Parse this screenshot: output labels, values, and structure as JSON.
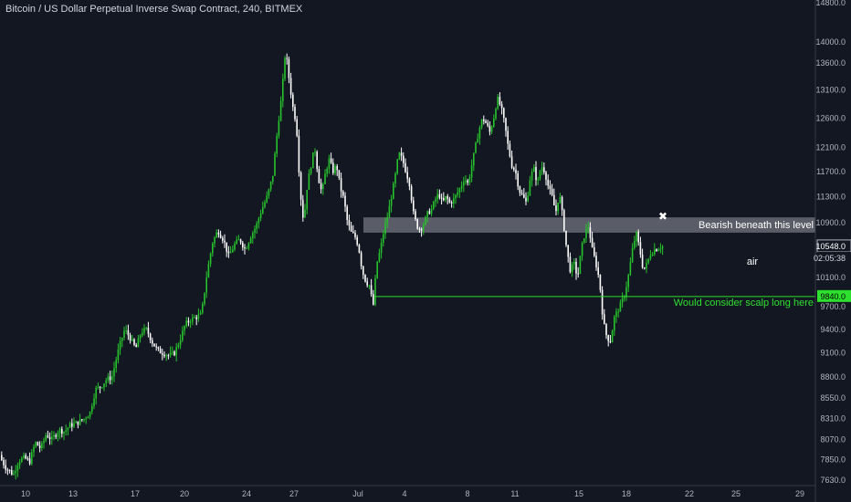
{
  "header": {
    "title": "Bitcoin / US Dollar Perpetual Inverse Swap Contract, 240, BITMEX"
  },
  "colors": {
    "background": "#131722",
    "up": "#26c22b",
    "down": "#ffffff",
    "axis_text": "#b2b5be",
    "support_line": "#2ee02e",
    "resistance_zone": "#9598a1"
  },
  "price_scale": {
    "ticks": [
      "14800.0",
      "14000.0",
      "13600.0",
      "13100.0",
      "12600.0",
      "12100.0",
      "11700.0",
      "11300.0",
      "10900.0",
      "10100.0",
      "9700.0",
      "9400.0",
      "9100.0",
      "8800.0",
      "8550.0",
      "8310.0",
      "8070.0",
      "7850.0",
      "7630.0"
    ],
    "current_price": "10548.0",
    "countdown": "02:05:38",
    "support_price": "9840.0"
  },
  "time_scale": {
    "ticks": [
      "10",
      "13",
      "17",
      "20",
      "24",
      "27",
      "Jul",
      "4",
      "8",
      "11",
      "15",
      "18",
      "22",
      "25",
      "29"
    ]
  },
  "annotations": {
    "resistance_text": "Bearish beneath this level",
    "air_text": "air",
    "support_text": "Would consider scalp long here",
    "marker": "✖"
  },
  "chart_data": {
    "type": "candlestick",
    "title": "Bitcoin / US Dollar Perpetual Inverse Swap Contract, 240, BITMEX",
    "y_scale": "log",
    "ylim": [
      7580,
      15000
    ],
    "x_ticks": [
      "10",
      "13",
      "17",
      "20",
      "24",
      "27",
      "Jul",
      "4",
      "8",
      "11",
      "15",
      "18",
      "22",
      "25",
      "29"
    ],
    "resistance_zone": [
      10750,
      10980
    ],
    "support_level": 9840,
    "last_price": 10548,
    "price_path": [
      [
        0,
        7900
      ],
      [
        8,
        7760
      ],
      [
        16,
        7690
      ],
      [
        22,
        7840
      ],
      [
        28,
        7870
      ],
      [
        34,
        7830
      ],
      [
        40,
        8040
      ],
      [
        46,
        7970
      ],
      [
        52,
        8130
      ],
      [
        58,
        8070
      ],
      [
        66,
        8180
      ],
      [
        72,
        8160
      ],
      [
        78,
        8230
      ],
      [
        86,
        8260
      ],
      [
        94,
        8310
      ],
      [
        100,
        8380
      ],
      [
        106,
        8650
      ],
      [
        112,
        8690
      ],
      [
        118,
        8770
      ],
      [
        124,
        8800
      ],
      [
        132,
        9180
      ],
      [
        138,
        9400
      ],
      [
        144,
        9290
      ],
      [
        150,
        9150
      ],
      [
        156,
        9370
      ],
      [
        162,
        9400
      ],
      [
        168,
        9240
      ],
      [
        174,
        9130
      ],
      [
        180,
        9100
      ],
      [
        186,
        9070
      ],
      [
        192,
        9090
      ],
      [
        198,
        9250
      ],
      [
        204,
        9460
      ],
      [
        210,
        9530
      ],
      [
        216,
        9560
      ],
      [
        222,
        9600
      ],
      [
        228,
        10150
      ],
      [
        234,
        10600
      ],
      [
        240,
        10780
      ],
      [
        246,
        10650
      ],
      [
        252,
        10400
      ],
      [
        258,
        10570
      ],
      [
        264,
        10650
      ],
      [
        270,
        10500
      ],
      [
        276,
        10700
      ],
      [
        282,
        10850
      ],
      [
        288,
        11100
      ],
      [
        294,
        11300
      ],
      [
        300,
        11620
      ],
      [
        306,
        12500
      ],
      [
        310,
        13000
      ],
      [
        314,
        13850
      ],
      [
        318,
        13300
      ],
      [
        322,
        12800
      ],
      [
        326,
        12500
      ],
      [
        330,
        11400
      ],
      [
        334,
        10900
      ],
      [
        338,
        11500
      ],
      [
        342,
        11800
      ],
      [
        346,
        12100
      ],
      [
        350,
        11600
      ],
      [
        354,
        11350
      ],
      [
        358,
        11700
      ],
      [
        362,
        11900
      ],
      [
        366,
        11700
      ],
      [
        370,
        11800
      ],
      [
        374,
        11450
      ],
      [
        378,
        11250
      ],
      [
        382,
        10900
      ],
      [
        386,
        10750
      ],
      [
        390,
        10700
      ],
      [
        394,
        10550
      ],
      [
        398,
        10200
      ],
      [
        402,
        10050
      ],
      [
        406,
        9990
      ],
      [
        410,
        9700
      ],
      [
        414,
        10300
      ],
      [
        418,
        10500
      ],
      [
        422,
        10800
      ],
      [
        426,
        11000
      ],
      [
        430,
        11300
      ],
      [
        434,
        11600
      ],
      [
        438,
        12000
      ],
      [
        442,
        11900
      ],
      [
        446,
        11700
      ],
      [
        450,
        11500
      ],
      [
        454,
        11050
      ],
      [
        458,
        10850
      ],
      [
        462,
        10800
      ],
      [
        466,
        10900
      ],
      [
        470,
        11050
      ],
      [
        474,
        11100
      ],
      [
        478,
        11250
      ],
      [
        482,
        11350
      ],
      [
        486,
        11200
      ],
      [
        490,
        11300
      ],
      [
        494,
        11200
      ],
      [
        498,
        11250
      ],
      [
        502,
        11350
      ],
      [
        506,
        11450
      ],
      [
        510,
        11600
      ],
      [
        514,
        11500
      ],
      [
        518,
        11800
      ],
      [
        522,
        12100
      ],
      [
        526,
        12400
      ],
      [
        530,
        12600
      ],
      [
        534,
        12500
      ],
      [
        538,
        12350
      ],
      [
        542,
        12600
      ],
      [
        546,
        12950
      ],
      [
        550,
        12800
      ],
      [
        554,
        12500
      ],
      [
        558,
        12100
      ],
      [
        562,
        11800
      ],
      [
        566,
        11700
      ],
      [
        570,
        11400
      ],
      [
        574,
        11300
      ],
      [
        578,
        11200
      ],
      [
        582,
        11600
      ],
      [
        586,
        11750
      ],
      [
        590,
        11500
      ],
      [
        594,
        11800
      ],
      [
        598,
        11700
      ],
      [
        602,
        11450
      ],
      [
        606,
        11300
      ],
      [
        610,
        11050
      ],
      [
        614,
        11350
      ],
      [
        618,
        10950
      ],
      [
        622,
        10500
      ],
      [
        626,
        10200
      ],
      [
        630,
        10300
      ],
      [
        634,
        10100
      ],
      [
        638,
        10500
      ],
      [
        642,
        10750
      ],
      [
        646,
        10850
      ],
      [
        650,
        10500
      ],
      [
        654,
        10300
      ],
      [
        658,
        10050
      ],
      [
        662,
        9500
      ],
      [
        666,
        9300
      ],
      [
        670,
        9250
      ],
      [
        674,
        9550
      ],
      [
        678,
        9650
      ],
      [
        682,
        9750
      ],
      [
        686,
        9900
      ],
      [
        690,
        10150
      ],
      [
        694,
        10500
      ],
      [
        698,
        10750
      ],
      [
        702,
        10500
      ],
      [
        706,
        10200
      ],
      [
        710,
        10300
      ],
      [
        714,
        10450
      ],
      [
        718,
        10500
      ],
      [
        722,
        10520
      ],
      [
        726,
        10548
      ]
    ]
  }
}
